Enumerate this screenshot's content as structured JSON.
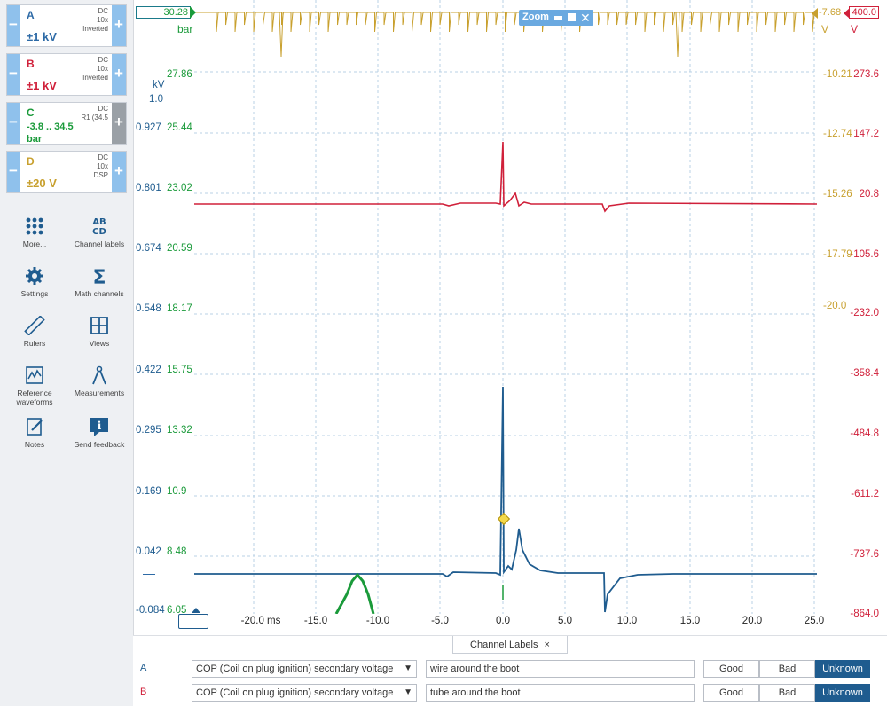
{
  "channels": [
    {
      "letter": "A",
      "range": "±1 kV",
      "meta": [
        "DC",
        "10x",
        "Inverted"
      ],
      "color": "#2d6aa6"
    },
    {
      "letter": "B",
      "range": "±1 kV",
      "meta": [
        "DC",
        "10x",
        "Inverted"
      ],
      "color": "#d0203a"
    },
    {
      "letter": "C",
      "range": "-3.8 .. 34.5",
      "range2": "bar",
      "meta": [
        "DC",
        "R1 (34.5"
      ],
      "color": "#1a9a3a"
    },
    {
      "letter": "D",
      "range": "±20 V",
      "meta": [
        "DC",
        "10x",
        "DSP"
      ],
      "color": "#c8a02e"
    }
  ],
  "tools": [
    {
      "label": "More...",
      "icon": "more-icon"
    },
    {
      "label": "Channel labels",
      "icon": "channel-labels-icon",
      "glyph": "AB\nCD"
    },
    {
      "label": "Settings",
      "icon": "gear-icon"
    },
    {
      "label": "Math channels",
      "icon": "sigma-icon",
      "glyph": "Σ"
    },
    {
      "label": "Rulers",
      "icon": "ruler-icon"
    },
    {
      "label": "Views",
      "icon": "views-icon"
    },
    {
      "label": "Reference waveforms",
      "icon": "reference-icon"
    },
    {
      "label": "Measurements",
      "icon": "measurements-icon"
    },
    {
      "label": "Notes",
      "icon": "notes-icon"
    },
    {
      "label": "Send feedback",
      "icon": "feedback-icon"
    }
  ],
  "top": {
    "c_marker": "30.28",
    "c_unit": "bar",
    "d_marker": "-7.68",
    "b_marker": "400.0",
    "d_unit": "V",
    "b_unit": "V",
    "zoom_label": "Zoom"
  },
  "axes": {
    "a_unit": "kV",
    "a_scale": "1.0",
    "a_values": [
      "0.927",
      "0.801",
      "0.674",
      "0.548",
      "0.422",
      "0.295",
      "0.169",
      "0.042",
      "-0.084"
    ],
    "c_values": [
      "27.86",
      "25.44",
      "23.02",
      "20.59",
      "18.17",
      "15.75",
      "13.32",
      "10.9",
      "8.48",
      "6.05"
    ],
    "d_values": [
      "-10.21",
      "-12.74",
      "-15.26",
      "-17.79",
      "-20.0"
    ],
    "b_values": [
      "273.6",
      "147.2",
      "20.8",
      "-105.6",
      "-232.0",
      "-358.4",
      "-484.8",
      "-611.2",
      "-737.6",
      "-864.0"
    ],
    "x_values": [
      "-20.0 ms",
      "-15.0",
      "-10.0",
      "-5.0",
      "0.0",
      "5.0",
      "10.0",
      "15.0",
      "20.0",
      "25.0"
    ]
  },
  "bottom": {
    "tab_label": "Channel Labels",
    "rows": [
      {
        "letter": "A",
        "select": "COP (Coil on plug ignition) secondary voltage",
        "text": "wire around the boot",
        "good": "Good",
        "bad": "Bad",
        "unknown": "Unknown",
        "selected": "Unknown"
      },
      {
        "letter": "B",
        "select": "COP (Coil on plug ignition) secondary voltage",
        "text": "tube around the boot",
        "good": "Good",
        "bad": "Bad",
        "unknown": "Unknown",
        "selected": "Unknown"
      }
    ]
  },
  "chart_data": {
    "type": "line",
    "x_unit": "ms",
    "xlim": [
      -25.0,
      25.0
    ],
    "series": [
      {
        "name": "A",
        "color": "#2d6aa6"
      },
      {
        "name": "B",
        "color": "#d0203a"
      },
      {
        "name": "C",
        "color": "#1a9a3a"
      },
      {
        "name": "D",
        "color": "#c8a02e"
      }
    ]
  }
}
